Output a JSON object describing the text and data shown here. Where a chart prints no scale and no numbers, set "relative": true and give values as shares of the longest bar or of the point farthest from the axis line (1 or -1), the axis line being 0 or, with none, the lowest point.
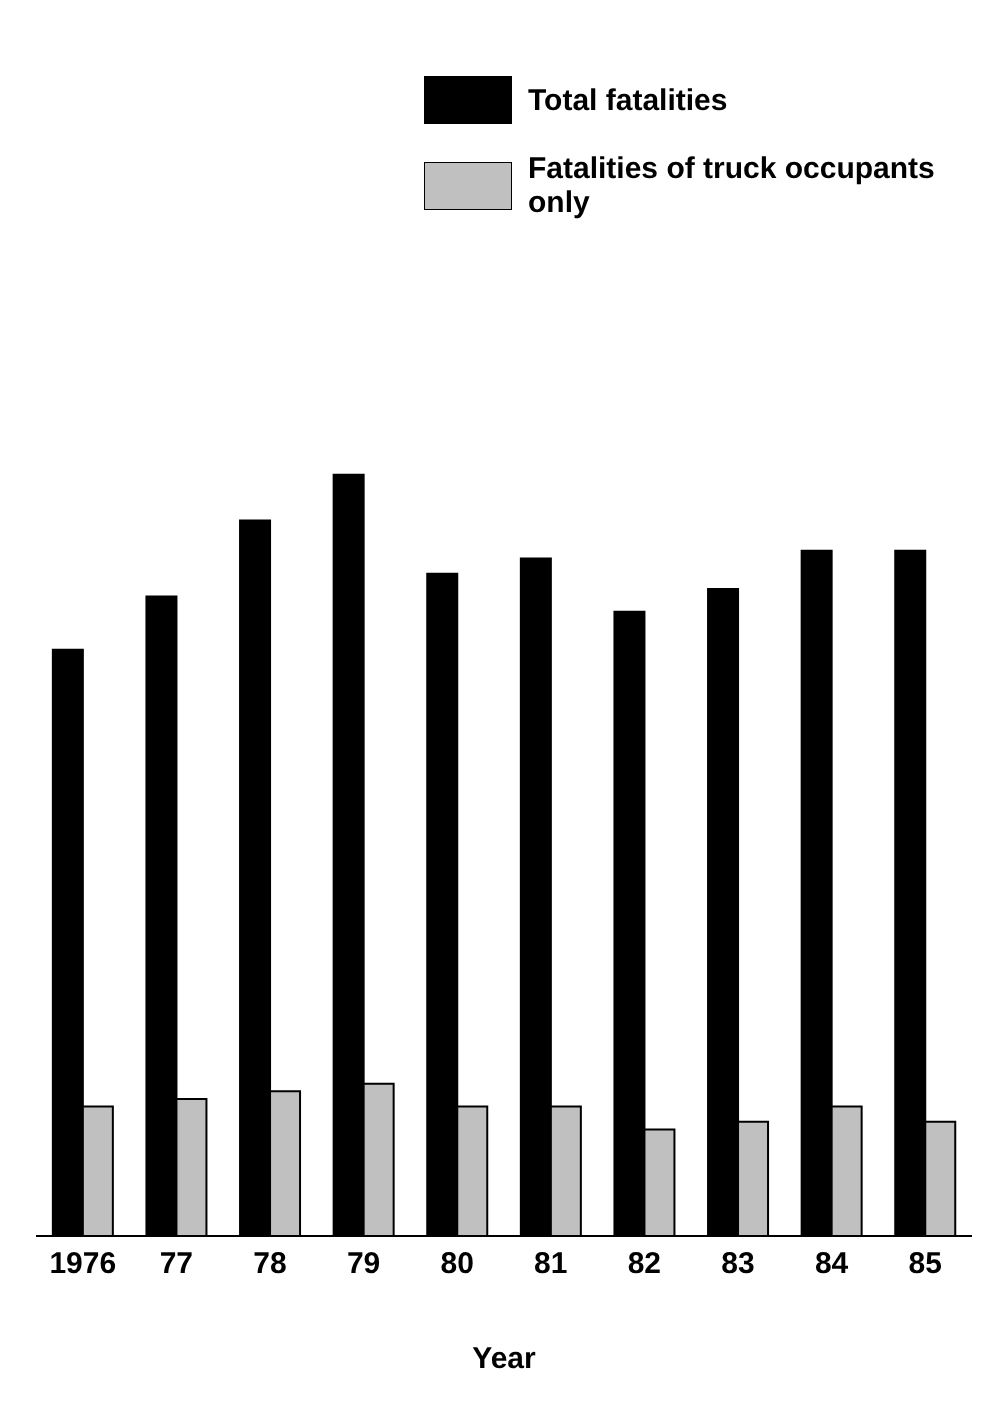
{
  "chart_data": {
    "type": "bar",
    "relative": true,
    "xlabel": "Year",
    "categories": [
      "1976",
      "77",
      "78",
      "79",
      "80",
      "81",
      "82",
      "83",
      "84",
      "85"
    ],
    "series": [
      {
        "name": "Total fatalities",
        "color": "#000000",
        "values": [
          0.77,
          0.84,
          0.94,
          1,
          0.87,
          0.89,
          0.82,
          0.85,
          0.9,
          0.9
        ]
      },
      {
        "name": "Fatalities of truck occupants only",
        "color": "#c0c0c0",
        "values": [
          0.17,
          0.18,
          0.19,
          0.2,
          0.17,
          0.17,
          0.14,
          0.15,
          0.17,
          0.15
        ]
      }
    ],
    "legend": "top right",
    "grid": false
  }
}
